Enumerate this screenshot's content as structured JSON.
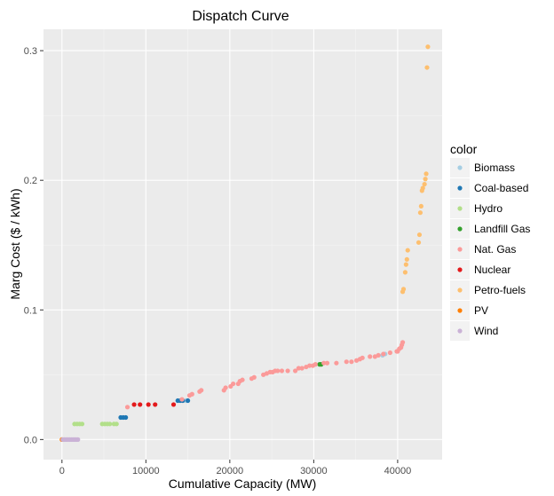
{
  "chart_data": {
    "type": "scatter",
    "title": "Dispatch Curve",
    "xlabel": "Cumulative Capacity (MW)",
    "ylabel": "Marg Cost ($ / kWh)",
    "xlim": [
      -2200,
      45300
    ],
    "ylim": [
      -0.0155,
      0.3165
    ],
    "x_ticks": [
      0,
      10000,
      20000,
      30000,
      40000
    ],
    "y_ticks": [
      0.0,
      0.1,
      0.2,
      0.3
    ],
    "x_tick_labels": [
      "0",
      "10000",
      "20000",
      "30000",
      "40000"
    ],
    "y_tick_labels": [
      "0.0",
      "0.1",
      "0.2",
      "0.3"
    ],
    "grid": true,
    "legend_title": "color",
    "legend_position": "right",
    "series": [
      {
        "name": "Biomass",
        "color": "#a6cee3",
        "x": [
          14800,
          38200,
          38500
        ],
        "y": [
          0.03,
          0.065,
          0.066
        ]
      },
      {
        "name": "Coal-based",
        "color": "#1f78b4",
        "x": [
          7000,
          7300,
          7600,
          13800,
          14100,
          14400,
          15000
        ],
        "y": [
          0.017,
          0.017,
          0.017,
          0.03,
          0.03,
          0.03,
          0.03
        ]
      },
      {
        "name": "Hydro",
        "color": "#b2df8a",
        "x": [
          1500,
          1800,
          2100,
          2400,
          4800,
          5100,
          5400,
          5700,
          6200,
          6500
        ],
        "y": [
          0.012,
          0.012,
          0.012,
          0.012,
          0.012,
          0.012,
          0.012,
          0.012,
          0.012,
          0.012
        ]
      },
      {
        "name": "Landfill Gas",
        "color": "#33a02c",
        "x": [
          30700,
          30900
        ],
        "y": [
          0.058,
          0.058
        ]
      },
      {
        "name": "Nat. Gas",
        "color": "#fb9a99",
        "x": [
          7800,
          14300,
          15200,
          15500,
          16400,
          16600,
          19300,
          19500,
          20100,
          20400,
          21000,
          21200,
          21500,
          22600,
          22900,
          24000,
          24400,
          24800,
          25100,
          25400,
          25700,
          26200,
          26900,
          27800,
          28200,
          28600,
          29100,
          29500,
          29900,
          30200,
          31200,
          31600,
          32700,
          33900,
          34500,
          35100,
          35500,
          35800,
          36700,
          37300,
          37700,
          38300,
          39100,
          39900,
          40000,
          40200,
          40400,
          40500,
          40600
        ],
        "y": [
          0.025,
          0.031,
          0.034,
          0.035,
          0.037,
          0.038,
          0.038,
          0.04,
          0.041,
          0.043,
          0.043,
          0.045,
          0.046,
          0.047,
          0.048,
          0.05,
          0.051,
          0.052,
          0.052,
          0.053,
          0.053,
          0.053,
          0.053,
          0.053,
          0.055,
          0.055,
          0.056,
          0.057,
          0.057,
          0.058,
          0.059,
          0.059,
          0.059,
          0.06,
          0.06,
          0.061,
          0.062,
          0.063,
          0.064,
          0.064,
          0.065,
          0.066,
          0.067,
          0.068,
          0.068,
          0.07,
          0.071,
          0.073,
          0.075
        ]
      },
      {
        "name": "Nuclear",
        "color": "#e31a1c",
        "x": [
          8600,
          9300,
          10300,
          11100,
          13300
        ],
        "y": [
          0.027,
          0.027,
          0.027,
          0.027,
          0.027
        ]
      },
      {
        "name": "Petro-fuels",
        "color": "#fdbf6f",
        "x": [
          40600,
          40700,
          40900,
          41000,
          41100,
          41200,
          42500,
          42600,
          42700,
          42800,
          42900,
          43000,
          43200,
          43300,
          43400,
          43500,
          43600
        ],
        "y": [
          0.114,
          0.116,
          0.129,
          0.135,
          0.139,
          0.146,
          0.152,
          0.158,
          0.175,
          0.18,
          0.192,
          0.194,
          0.197,
          0.201,
          0.205,
          0.287,
          0.303
        ]
      },
      {
        "name": "PV",
        "color": "#ff7f00",
        "x": [
          0
        ],
        "y": [
          0.0
        ]
      },
      {
        "name": "Wind",
        "color": "#cab2d6",
        "x": [
          100,
          300,
          500,
          700,
          900,
          1100,
          1300,
          1500,
          1700,
          1900
        ],
        "y": [
          0.0,
          0.0,
          0.0,
          0.0,
          0.0,
          0.0,
          0.0,
          0.0,
          0.0,
          0.0
        ]
      }
    ]
  }
}
